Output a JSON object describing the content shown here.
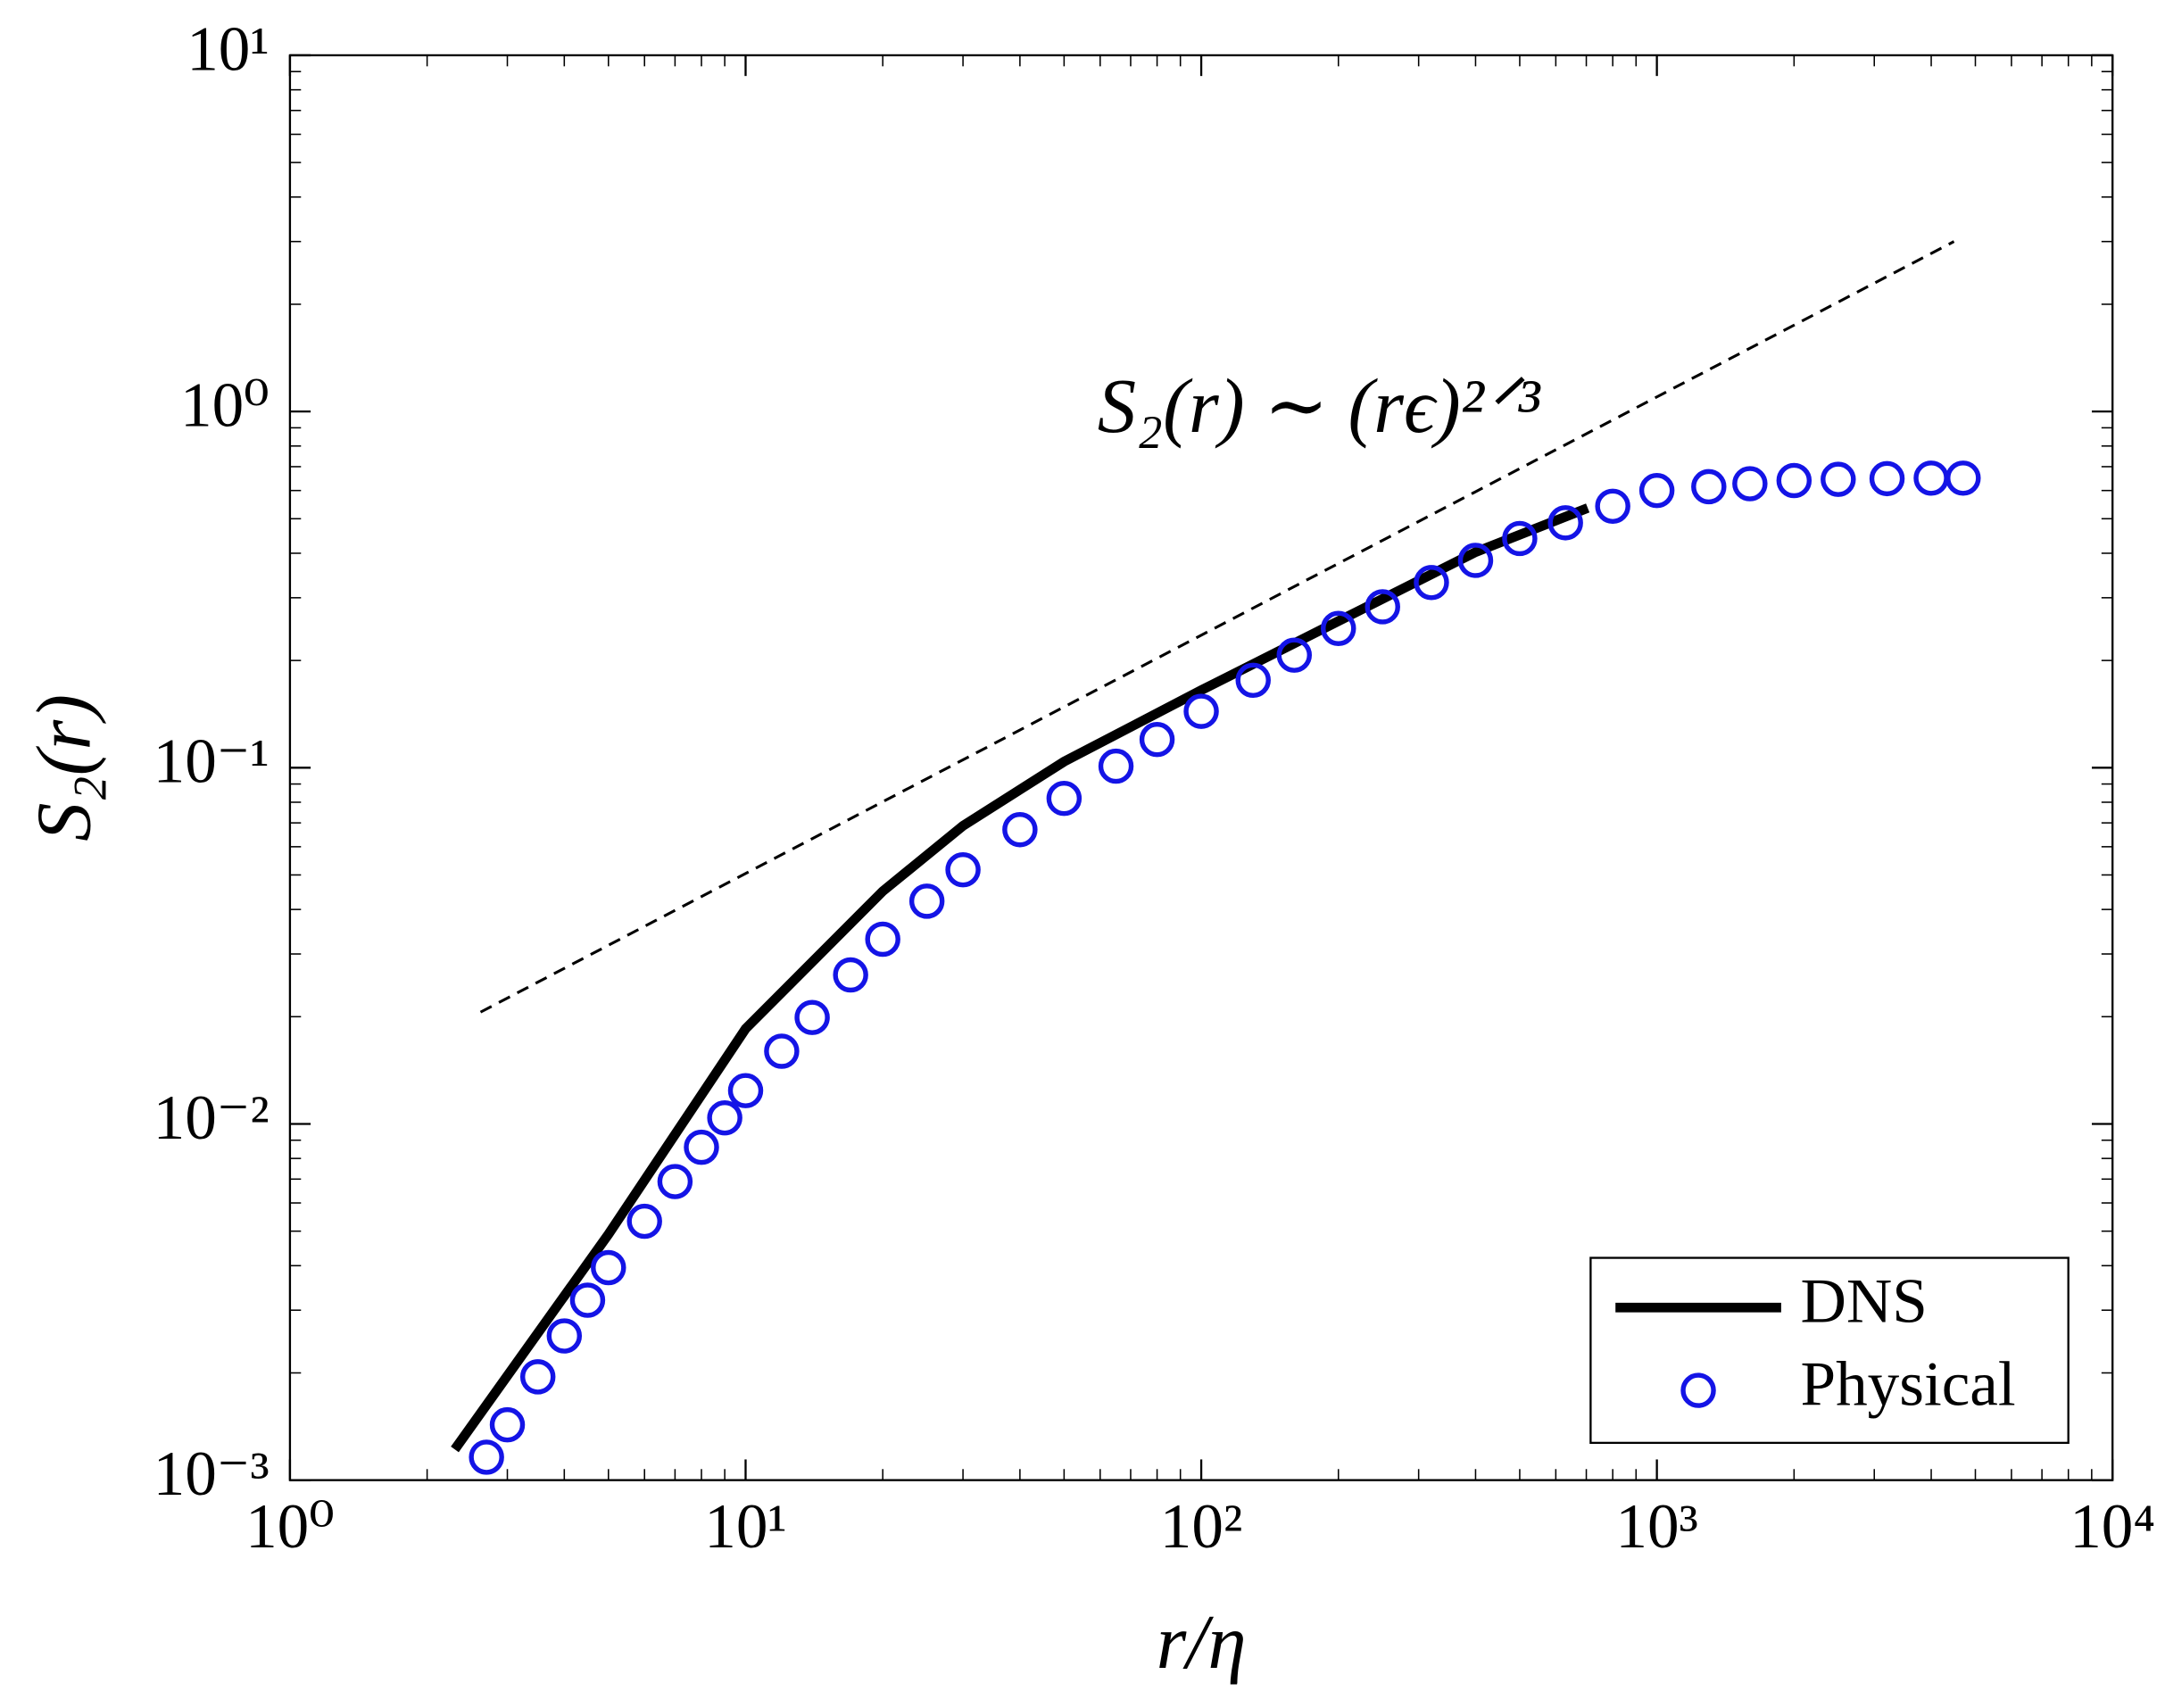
{
  "chart_data": {
    "type": "line",
    "x_label": "r/η",
    "y_label": "S₂(r)",
    "log_x": true,
    "log_y": true,
    "xlim": [
      1,
      10000
    ],
    "ylim": [
      0.001,
      10
    ],
    "xticks": [
      {
        "value": 1,
        "label": "10⁰"
      },
      {
        "value": 10,
        "label": "10¹"
      },
      {
        "value": 100,
        "label": "10²"
      },
      {
        "value": 1000,
        "label": "10³"
      },
      {
        "value": 10000,
        "label": "10⁴"
      }
    ],
    "yticks": [
      {
        "value": 0.001,
        "label": "10⁻³"
      },
      {
        "value": 0.01,
        "label": "10⁻²"
      },
      {
        "value": 0.1,
        "label": "10⁻¹"
      },
      {
        "value": 1,
        "label": "10⁰"
      },
      {
        "value": 10,
        "label": "10¹"
      }
    ],
    "legend_position": "lower right",
    "series": [
      {
        "name": "DNS",
        "style": "line",
        "color": "#000000",
        "x": [
          2.3,
          5,
          10,
          20,
          30,
          50,
          100,
          200,
          400,
          705
        ],
        "values": [
          0.00122,
          0.0049,
          0.0185,
          0.045,
          0.0687,
          0.104,
          0.165,
          0.258,
          0.403,
          0.536
        ]
      },
      {
        "name": "Physical",
        "style": "markers",
        "color": "#1414e6",
        "x": [
          2.7,
          3,
          3.5,
          4,
          4.5,
          5,
          6,
          7,
          8,
          9,
          10,
          12,
          14,
          17,
          20,
          25,
          30,
          40,
          50,
          65,
          80,
          100,
          130,
          160,
          200,
          250,
          320,
          400,
          500,
          630,
          800,
          1000,
          1300,
          1600,
          2000,
          2500,
          3200,
          4000,
          4700
        ],
        "values": [
          0.00116,
          0.00143,
          0.00195,
          0.00254,
          0.0032,
          0.00395,
          0.00533,
          0.00689,
          0.0086,
          0.0104,
          0.0124,
          0.016,
          0.0199,
          0.0262,
          0.033,
          0.0422,
          0.0517,
          0.067,
          0.082,
          0.101,
          0.12,
          0.144,
          0.176,
          0.207,
          0.246,
          0.283,
          0.331,
          0.382,
          0.44,
          0.487,
          0.542,
          0.6,
          0.615,
          0.627,
          0.64,
          0.645,
          0.648,
          0.65,
          0.65
        ]
      }
    ],
    "reference_line": {
      "style": "dashed",
      "color": "#000000",
      "x": [
        2.62,
        4487
      ],
      "values": [
        0.0206,
        3.0
      ],
      "annotation": "S₂(r) ∼ (rϵ)²ᐟ³"
    }
  }
}
